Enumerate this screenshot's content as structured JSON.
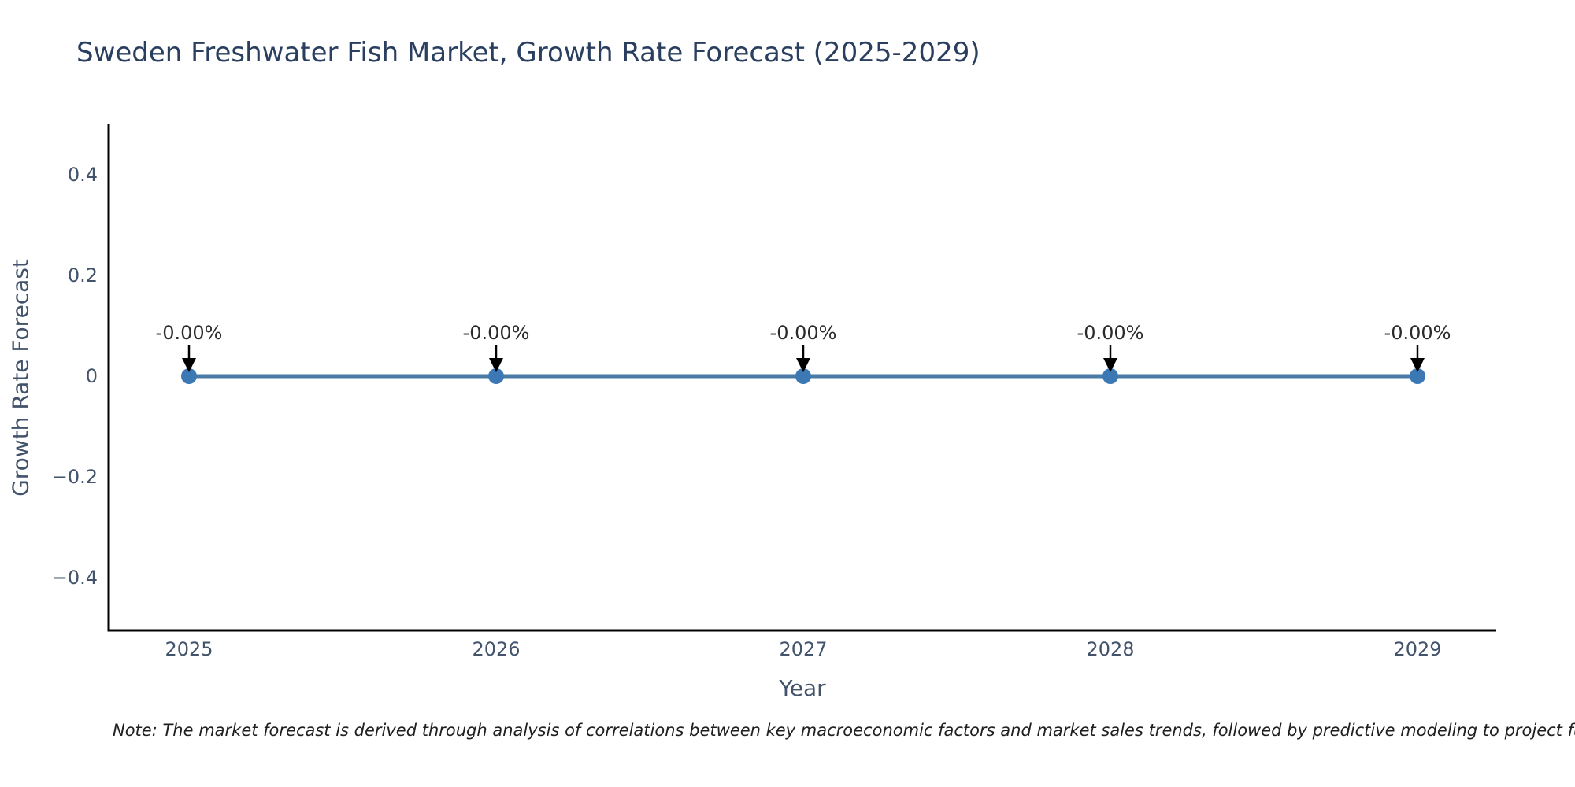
{
  "title": {
    "text": "Sweden Freshwater Fish Market, Growth Rate Forecast (2025-2029)",
    "color": "#2a3f5f"
  },
  "note": {
    "text": "Note: The market forecast is derived through analysis of correlations between key macroeconomic factors and market sales trends, followed by predictive modeling to project future sales."
  },
  "chart_data": {
    "type": "line",
    "title": "Sweden Freshwater Fish Market, Growth Rate Forecast (2025-2029)",
    "xlabel": "Year",
    "ylabel": "Growth Rate Forecast",
    "x": [
      2025,
      2026,
      2027,
      2028,
      2029
    ],
    "x_tick_labels": [
      "2025",
      "2026",
      "2027",
      "2028",
      "2029"
    ],
    "series": [
      {
        "name": "Growth Rate Forecast",
        "values": [
          0,
          0,
          0,
          0,
          0
        ]
      }
    ],
    "point_labels": [
      "-0.00%",
      "-0.00%",
      "-0.00%",
      "-0.00%",
      "-0.00%"
    ],
    "yticks": [
      {
        "value": 0.4,
        "label": "0.4"
      },
      {
        "value": 0.2,
        "label": "0.2"
      },
      {
        "value": 0,
        "label": "0"
      },
      {
        "value": -0.2,
        "label": "−0.2"
      },
      {
        "value": -0.4,
        "label": "−0.4"
      }
    ],
    "ylim": [
      -0.5,
      0.5
    ],
    "grid": false,
    "legend_position": "none",
    "annotation_style": "down-arrow",
    "colors": {
      "line": "#4a7ba6",
      "marker": "#3c79b4",
      "axis": "#000000",
      "tick_text": "#42536b",
      "annotation_text": "#2b2b2b",
      "arrow": "#000000"
    }
  }
}
